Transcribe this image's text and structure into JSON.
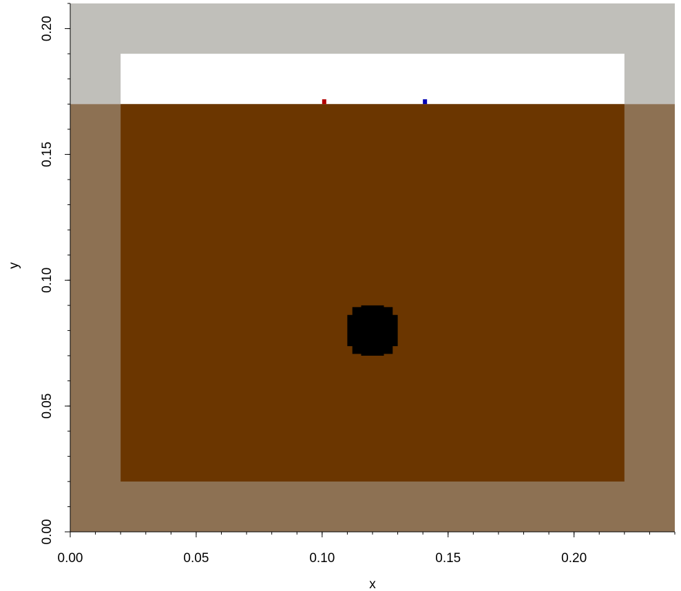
{
  "chart_data": {
    "type": "heatmap",
    "xlabel": "x",
    "ylabel": "y",
    "xlim": [
      0.0,
      0.24
    ],
    "ylim": [
      0.0,
      0.21
    ],
    "x_ticks": [
      {
        "value": 0.0,
        "label": "0.00"
      },
      {
        "value": 0.05,
        "label": "0.05"
      },
      {
        "value": 0.1,
        "label": "0.10"
      },
      {
        "value": 0.15,
        "label": "0.15"
      },
      {
        "value": 0.2,
        "label": "0.20"
      }
    ],
    "y_ticks": [
      {
        "value": 0.0,
        "label": "0.00"
      },
      {
        "value": 0.05,
        "label": "0.05"
      },
      {
        "value": 0.1,
        "label": "0.10"
      },
      {
        "value": 0.15,
        "label": "0.15"
      },
      {
        "value": 0.2,
        "label": "0.20"
      }
    ],
    "x_minor_step": 0.01,
    "y_minor_step": 0.01,
    "regions": [
      {
        "name": "outer-upper-region",
        "x": [
          0.0,
          0.24
        ],
        "y": [
          0.17,
          0.21
        ],
        "color": "#c0bfba"
      },
      {
        "name": "outer-lower-region",
        "x": [
          0.0,
          0.24
        ],
        "y": [
          0.0,
          0.17
        ],
        "color": "#8d7153"
      },
      {
        "name": "inner-upper-region",
        "x": [
          0.02,
          0.22
        ],
        "y": [
          0.17,
          0.19
        ],
        "color": "#ffffff"
      },
      {
        "name": "inner-lower-region",
        "x": [
          0.02,
          0.22
        ],
        "y": [
          0.02,
          0.17
        ],
        "color": "#6b3600"
      }
    ],
    "inclusion": {
      "name": "black-circle-inclusion",
      "cx": 0.12,
      "cy": 0.08,
      "r": 0.01,
      "color": "#000000"
    },
    "markers": [
      {
        "name": "red-marker",
        "x": 0.1,
        "y": 0.17,
        "color": "#b30000"
      },
      {
        "name": "blue-marker",
        "x": 0.14,
        "y": 0.17,
        "color": "#0000b3"
      }
    ]
  }
}
